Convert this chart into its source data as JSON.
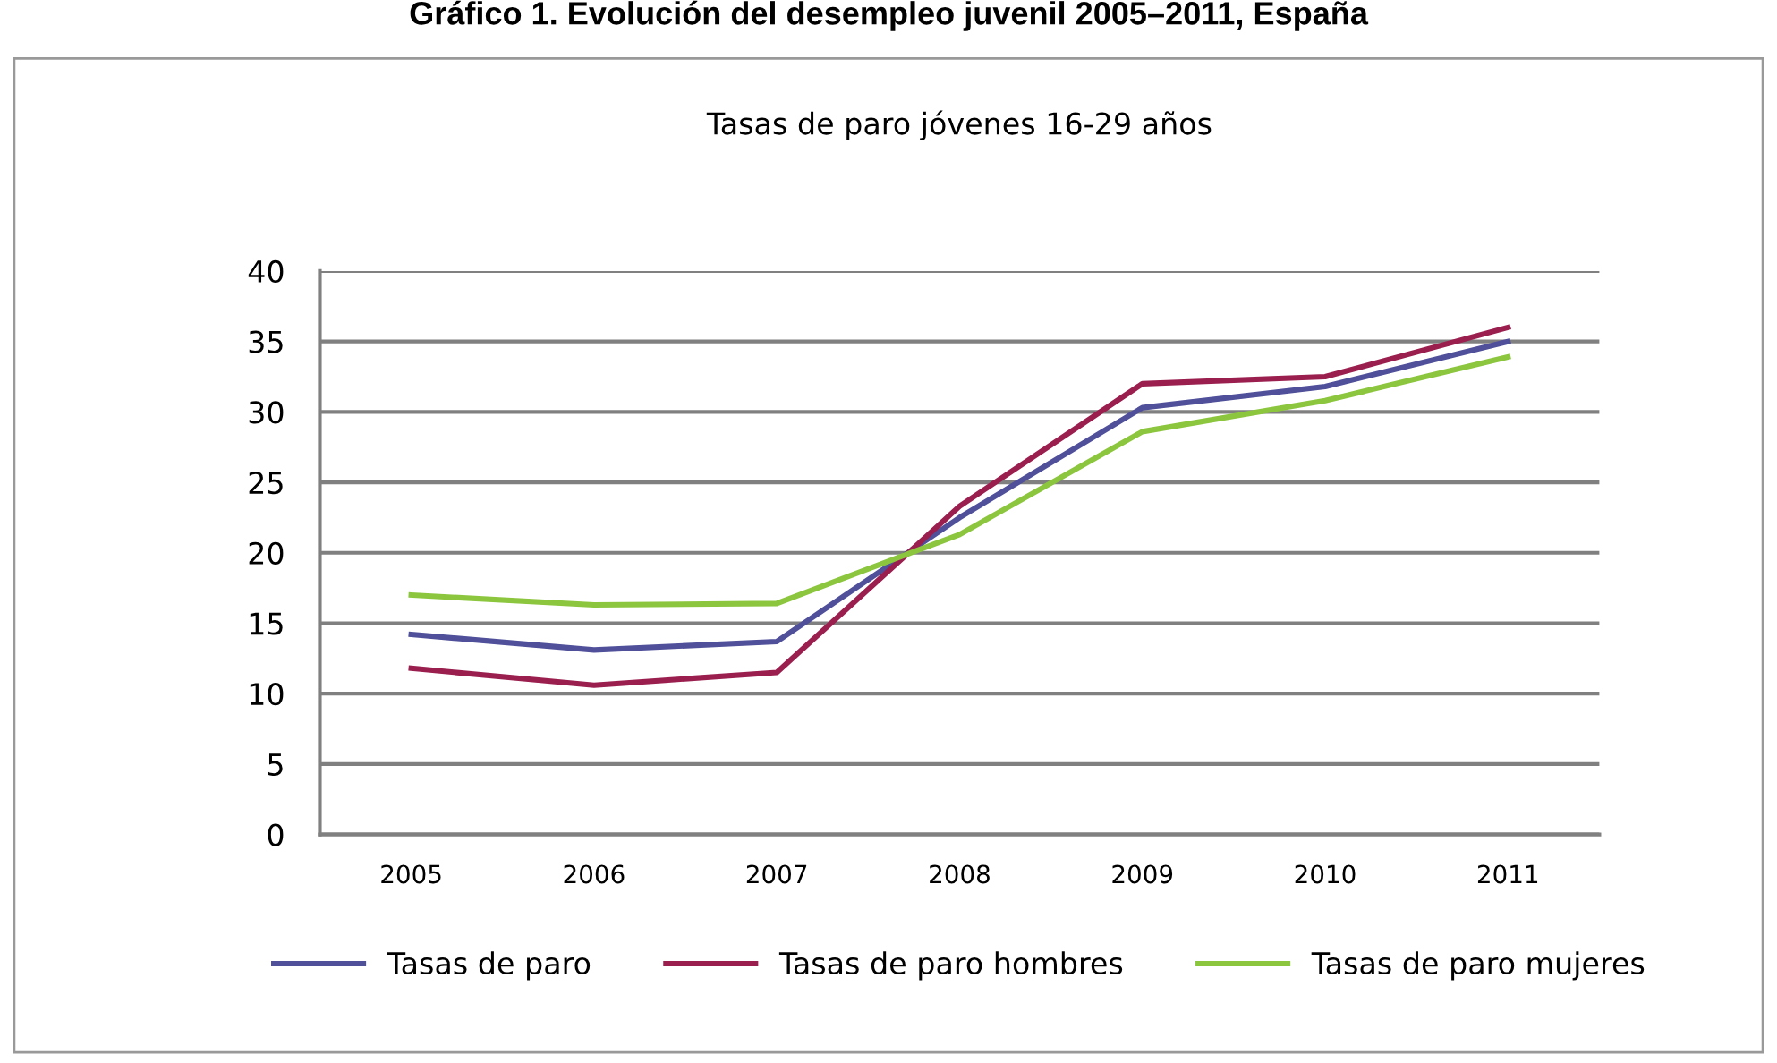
{
  "chart_data": {
    "type": "line",
    "title": "Tasas de paro jóvenes 16-29 años",
    "annotations": [
      "Gráfico 1. Evolución del desempleo juvenil 2005–2011, España"
    ],
    "categories": [
      "2005",
      "2006",
      "2007",
      "2008",
      "2009",
      "2010",
      "2011"
    ],
    "series": [
      {
        "name": "Tasas de paro",
        "color": "#4f4f9a",
        "values": [
          14.2,
          13.1,
          13.7,
          22.5,
          30.3,
          31.8,
          35.0
        ]
      },
      {
        "name": "Tasas de paro hombres",
        "color": "#9a1f4f",
        "values": [
          11.8,
          10.6,
          11.5,
          23.3,
          32.0,
          32.5,
          36.0
        ]
      },
      {
        "name": "Tasas de paro mujeres",
        "color": "#8cc63f",
        "values": [
          17.0,
          16.3,
          16.4,
          21.3,
          28.6,
          30.8,
          33.9
        ]
      }
    ],
    "ylim": [
      0,
      40
    ],
    "yticks": [
      0,
      5,
      10,
      15,
      20,
      25,
      30,
      35,
      40
    ],
    "grid": "y",
    "legend": "bottom",
    "marker": "none",
    "line_style": "solid"
  }
}
